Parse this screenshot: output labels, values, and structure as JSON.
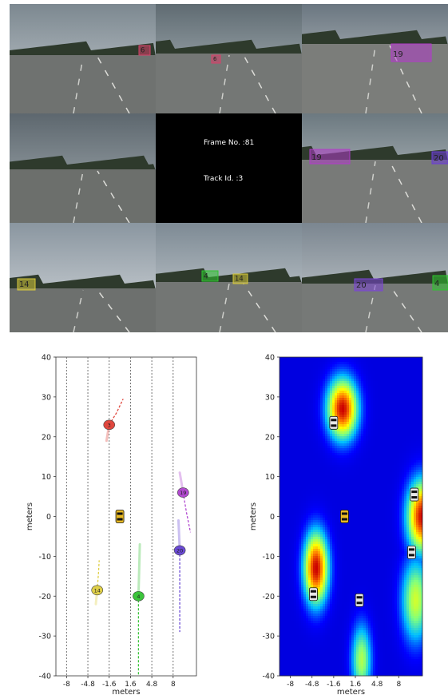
{
  "camera_grid": {
    "frame_label": "Frame No. :81",
    "track_label": "Track Id. :3",
    "detections": [
      {
        "cell": 0,
        "id": "6",
        "color": "#d6426a"
      },
      {
        "cell": 1,
        "id": "6",
        "color": "#d6426a"
      },
      {
        "cell": 2,
        "id": "19",
        "color": "#b03cc8"
      },
      {
        "cell": 5,
        "id": "19",
        "color": "#b03cc8"
      },
      {
        "cell": 5,
        "id": "20",
        "color": "#6b3cd6"
      },
      {
        "cell": 6,
        "id": "14",
        "color": "#d6c83c"
      },
      {
        "cell": 7,
        "id": "4",
        "color": "#2fc42f"
      },
      {
        "cell": 7,
        "id": "14",
        "color": "#d6c83c"
      },
      {
        "cell": 8,
        "id": "20",
        "color": "#7b45d6"
      },
      {
        "cell": 8,
        "id": "4",
        "color": "#2fc42f"
      }
    ]
  },
  "chart_data": [
    {
      "type": "scatter",
      "title": "",
      "xlabel": "meters",
      "ylabel": "meters",
      "xticks": [
        "-8",
        "-4.8",
        "-1.6",
        "1.6",
        "4.8",
        "8"
      ],
      "xlim": [
        -9.6,
        11.5
      ],
      "yticks": [
        40,
        30,
        20,
        10,
        0,
        -10,
        -20,
        -30,
        -40
      ],
      "ylim": [
        -40,
        40
      ],
      "lane_lines_x": [
        -8,
        -4.8,
        -1.6,
        1.6,
        4.8,
        8
      ],
      "ego": {
        "x": 0,
        "y": 0,
        "color": "#e8b923"
      },
      "vehicles": [
        {
          "id": "3",
          "x": -1.6,
          "y": 23,
          "color": "#e0473e",
          "future": [
            [
              -1.6,
              23
            ],
            [
              -0.5,
              26
            ],
            [
              0.5,
              29.5
            ]
          ],
          "past": [
            [
              -1.6,
              23
            ],
            [
              -2.0,
              19
            ]
          ]
        },
        {
          "id": "19",
          "x": 9.5,
          "y": 6,
          "color": "#b24ad0",
          "future": [
            [
              9.5,
              6
            ],
            [
              10.0,
              1
            ],
            [
              10.6,
              -4
            ]
          ],
          "past": [
            [
              9.5,
              6
            ],
            [
              9.0,
              11
            ]
          ]
        },
        {
          "id": "20",
          "x": 9.0,
          "y": -8.5,
          "color": "#6b4ad6",
          "future": [
            [
              9.0,
              -8.5
            ],
            [
              9.0,
              -20
            ],
            [
              9.0,
              -29
            ]
          ],
          "past": [
            [
              9.0,
              -8.5
            ],
            [
              8.8,
              -1
            ]
          ]
        },
        {
          "id": "14",
          "x": -3.4,
          "y": -18.5,
          "color": "#e0d048",
          "future": [
            [
              -3.4,
              -18.5
            ],
            [
              -3.2,
              -14
            ],
            [
              -3.1,
              -11
            ]
          ],
          "past": [
            [
              -3.4,
              -18.5
            ],
            [
              -3.6,
              -22
            ]
          ]
        },
        {
          "id": "4",
          "x": 2.8,
          "y": -20,
          "color": "#3cc43c",
          "future": [
            [
              2.8,
              -20
            ],
            [
              2.8,
              -30
            ],
            [
              2.8,
              -40
            ]
          ],
          "past": [
            [
              2.8,
              -20
            ],
            [
              3.0,
              -7
            ]
          ]
        }
      ]
    },
    {
      "type": "heatmap",
      "title": "",
      "xlabel": "meters",
      "ylabel": "meters",
      "xticks": [
        "-8",
        "-4.8",
        "-1.6",
        "1.6",
        "4.8",
        "8"
      ],
      "xlim": [
        -9.6,
        11.5
      ],
      "yticks": [
        40,
        30,
        20,
        10,
        0,
        -10,
        -20,
        -30,
        -40
      ],
      "ylim": [
        -40,
        40
      ],
      "ego": {
        "x": 0,
        "y": 0,
        "color": "#e8b923"
      },
      "blobs": [
        {
          "x": -0.3,
          "y": 27,
          "sx": 1.5,
          "sy": 5,
          "peak": 1.0
        },
        {
          "x": -4.2,
          "y": -13,
          "sx": 1.2,
          "sy": 6,
          "peak": 1.0
        },
        {
          "x": 11.5,
          "y": 0,
          "sx": 1.5,
          "sy": 6,
          "peak": 1.0
        },
        {
          "x": 10.5,
          "y": -21,
          "sx": 1.4,
          "sy": 7,
          "peak": 0.55
        },
        {
          "x": 2.5,
          "y": -36,
          "sx": 1.0,
          "sy": 6,
          "peak": 0.5
        }
      ],
      "cars": [
        {
          "x": -1.6,
          "y": 23.5
        },
        {
          "x": -4.6,
          "y": -19.5
        },
        {
          "x": 2.2,
          "y": -21
        },
        {
          "x": 10.3,
          "y": 5.5
        },
        {
          "x": 9.9,
          "y": -9
        }
      ],
      "colormap": [
        "#00008f",
        "#0000ff",
        "#00bfff",
        "#7fff7f",
        "#ffff00",
        "#ff7f00",
        "#cc0000"
      ]
    }
  ]
}
